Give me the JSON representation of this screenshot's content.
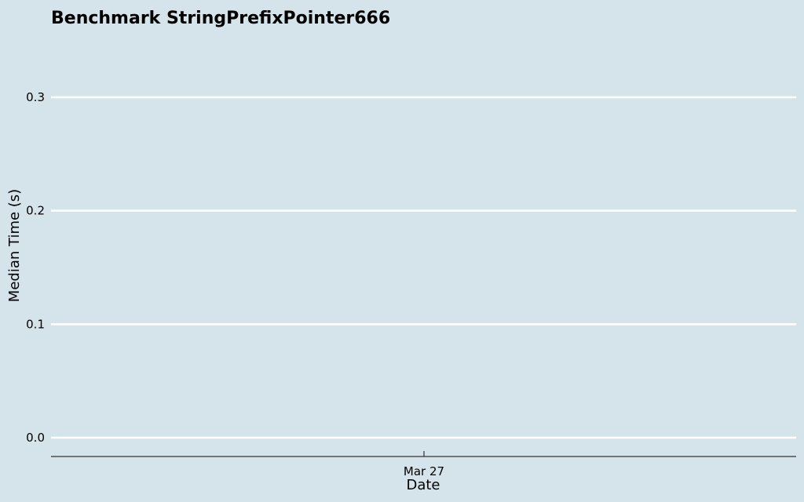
{
  "chart_data": {
    "type": "line",
    "title": "Benchmark StringPrefixPointer666",
    "xlabel": "Date",
    "ylabel": "Median Time (s)",
    "x_tick_labels": [
      "Mar 27"
    ],
    "y_tick_labels": [
      "0.0",
      "0.1",
      "0.2",
      "0.3"
    ],
    "y_ticks": [
      0.0,
      0.1,
      0.2,
      0.3
    ],
    "ylim": [
      -0.017,
      0.35
    ],
    "grid": "horizontal",
    "legend": "none",
    "series": []
  },
  "colors": {
    "background": "#d5e4ea",
    "grid": "#ffffff",
    "axis": "#333333",
    "text": "#000000"
  }
}
